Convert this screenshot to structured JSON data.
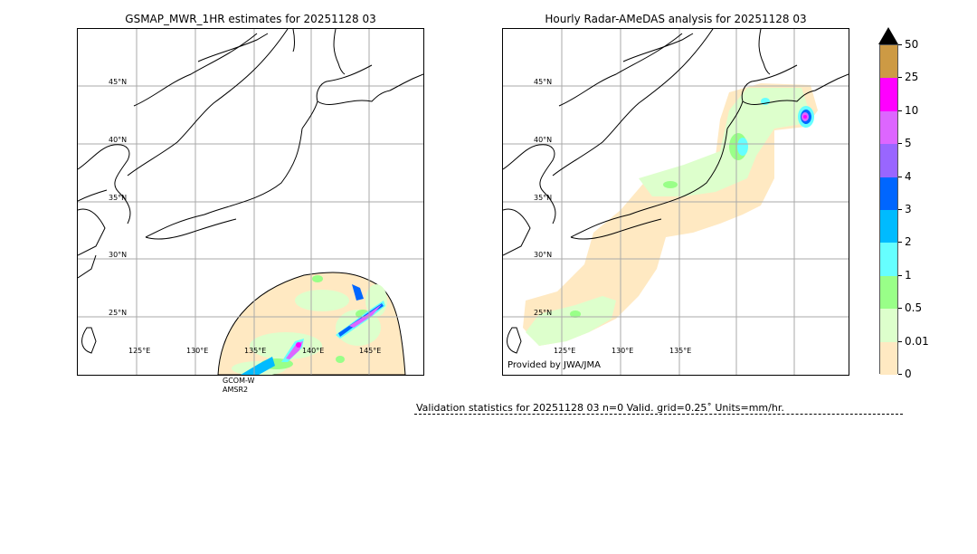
{
  "left_panel": {
    "title": "GSMAP_MWR_1HR estimates for 20251128 03",
    "satellite_label_line1": "GCOM-W",
    "satellite_label_line2": "AMSR2",
    "lat_labels": [
      "45°N",
      "40°N",
      "35°N",
      "30°N",
      "25°N"
    ],
    "lon_labels": [
      "125°E",
      "130°E",
      "135°E",
      "140°E",
      "145°E"
    ]
  },
  "right_panel": {
    "title": "Hourly Radar-AMeDAS analysis for 20251128 03",
    "provided_by": "Provided by JWA/JMA",
    "lat_labels": [
      "45°N",
      "40°N",
      "35°N",
      "30°N",
      "25°N"
    ],
    "lon_labels": [
      "125°E",
      "130°E",
      "135°E"
    ]
  },
  "colorbar": {
    "labels": [
      "50",
      "25",
      "10",
      "5",
      "4",
      "3",
      "2",
      "1",
      "0.5",
      "0.01",
      "0"
    ],
    "colors": [
      "#cd9a44",
      "#ff00ff",
      "#dd66ff",
      "#9966ff",
      "#0066ff",
      "#00bbff",
      "#66ffff",
      "#99ff88",
      "#ddffcc",
      "#ffe9c2"
    ],
    "extend_color": "#000000"
  },
  "validation": {
    "text": "Validation statistics for 20251128 03  n=0 Valid. grid=0.25˚ Units=mm/hr."
  }
}
